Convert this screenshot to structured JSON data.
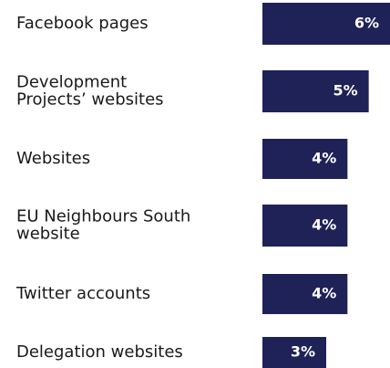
{
  "chart_data": {
    "type": "bar",
    "orientation": "horizontal",
    "categories": [
      "Facebook pages",
      "Development\nProjects’ websites",
      "Websites",
      "EU Neighbours South\nwebsite",
      "Twitter accounts",
      "Delegation websites"
    ],
    "values": [
      6,
      5,
      4,
      4,
      4,
      3
    ],
    "value_labels": [
      "6%",
      "5%",
      "4%",
      "4%",
      "4%",
      "3%"
    ],
    "color": "#1f2257"
  }
}
